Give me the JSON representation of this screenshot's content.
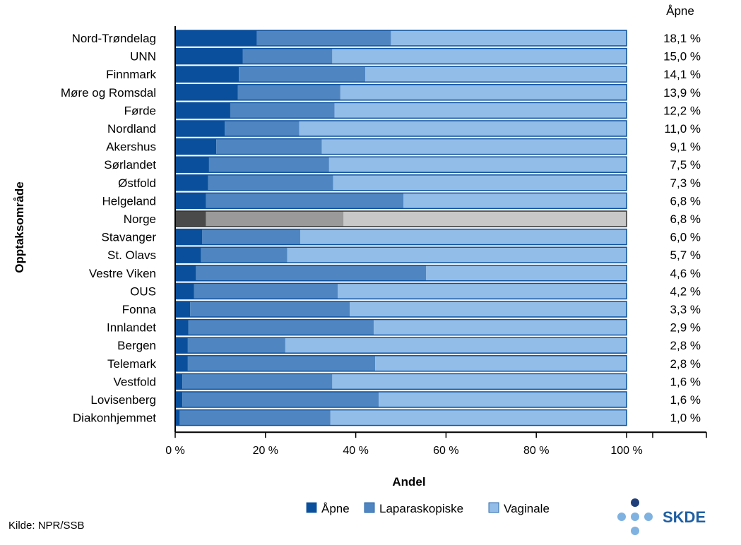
{
  "chart_data": {
    "type": "bar",
    "orientation": "horizontal",
    "stacked": true,
    "categories": [
      "Nord-Trøndelag",
      "UNN",
      "Finnmark",
      "Møre og Romsdal",
      "Førde",
      "Nordland",
      "Akershus",
      "Sørlandet",
      "Østfold",
      "Helgeland",
      "Norge",
      "Stavanger",
      "St. Olavs",
      "Vestre Viken",
      "OUS",
      "Fonna",
      "Innlandet",
      "Bergen",
      "Telemark",
      "Vestfold",
      "Lovisenberg",
      "Diakonhjemmet"
    ],
    "series": [
      {
        "name": "Åpne",
        "color": "#0a4f9c",
        "highlight_color": "#4a4a4a",
        "values": [
          18.1,
          15.0,
          14.1,
          13.9,
          12.2,
          11.0,
          9.1,
          7.5,
          7.3,
          6.8,
          6.8,
          6.0,
          5.7,
          4.6,
          4.2,
          3.3,
          2.9,
          2.8,
          2.8,
          1.6,
          1.6,
          1.0
        ]
      },
      {
        "name": "Laparaskopiske",
        "color": "#4f86c1",
        "highlight_color": "#9a9a9a",
        "values": [
          29.7,
          19.8,
          28.0,
          22.7,
          23.1,
          16.5,
          23.4,
          26.6,
          27.7,
          43.8,
          30.5,
          21.7,
          19.1,
          51.0,
          31.8,
          35.4,
          41.1,
          21.6,
          41.5,
          33.2,
          43.5,
          33.4
        ]
      },
      {
        "name": "Vaginale",
        "color": "#92bde8",
        "highlight_color": "#c8c8c8",
        "values": [
          52.2,
          65.2,
          57.9,
          63.4,
          64.7,
          72.5,
          67.5,
          65.9,
          65.0,
          49.4,
          62.7,
          72.3,
          75.2,
          44.4,
          64.0,
          61.3,
          56.0,
          75.6,
          55.7,
          65.2,
          54.9,
          65.6
        ]
      }
    ],
    "highlight_category": "Norge",
    "value_column": {
      "header": "Åpne",
      "labels": [
        "18,1 %",
        "15,0 %",
        "14,1 %",
        "13,9 %",
        "12,2 %",
        "11,0 %",
        "9,1 %",
        "7,5 %",
        "7,3 %",
        "6,8 %",
        "6,8 %",
        "6,0 %",
        "5,7 %",
        "4,6 %",
        "4,2 %",
        "3,3 %",
        "2,9 %",
        "2,8 %",
        "2,8 %",
        "1,6 %",
        "1,6 %",
        "1,0 %"
      ]
    },
    "xlabel": "Andel",
    "ylabel": "Opptaksområde",
    "xlim": [
      0,
      100
    ],
    "xticks": [
      0,
      20,
      40,
      60,
      80,
      100
    ],
    "xtick_labels": [
      "0 %",
      "20 %",
      "40 %",
      "60 %",
      "80 %",
      "100 %"
    ],
    "legend_position": "bottom-center",
    "grid": false
  },
  "source": "Kilde: NPR/SSB",
  "logo": {
    "text": "SKDE",
    "dot_color_dark": "#1f3f7a",
    "dot_color_light": "#7fb2e0"
  }
}
